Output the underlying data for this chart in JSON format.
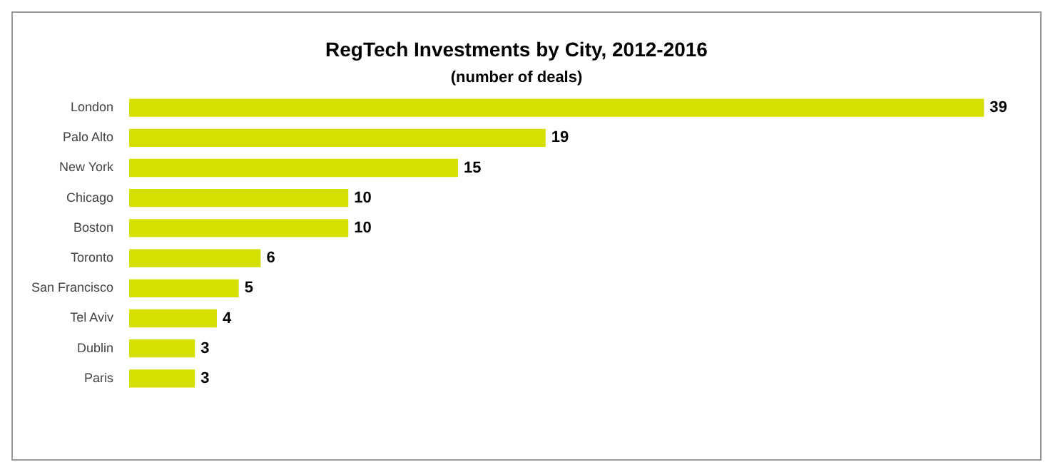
{
  "chart_data": {
    "type": "bar",
    "orientation": "horizontal",
    "title": "RegTech Investments by City, 2012-2016",
    "subtitle": "(number of deals)",
    "categories": [
      "London",
      "Palo Alto",
      "New York",
      "Chicago",
      "Boston",
      "Toronto",
      "San Francisco",
      "Tel Aviv",
      "Dublin",
      "Paris"
    ],
    "values": [
      39,
      19,
      15,
      10,
      10,
      6,
      5,
      4,
      3,
      3
    ],
    "color": "#d6e000",
    "data_labels": true,
    "legend": false
  }
}
